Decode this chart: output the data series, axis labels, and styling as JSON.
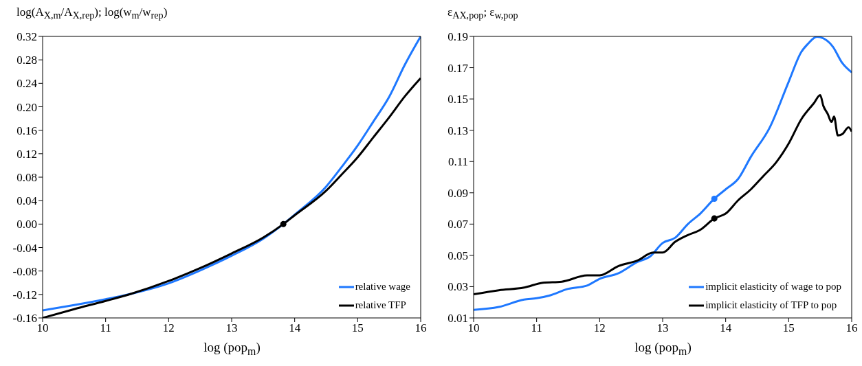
{
  "chart_data": [
    {
      "type": "line",
      "ylabel": "log(A$_{X,m}$/A$_{X,rep}$);  log(w$_{m}$/w$_{rep}$)",
      "xlabel": "log (pop$_{m}$)",
      "xlim": [
        10,
        16
      ],
      "xticks": [
        10,
        11,
        12,
        13,
        14,
        15,
        16
      ],
      "ylim": [
        -0.16,
        0.32
      ],
      "yticks": [
        -0.16,
        -0.12,
        -0.08,
        -0.04,
        {
          "value": 0,
          "label": "0.00"
        },
        0.04,
        0.08,
        0.12,
        0.16,
        {
          "value": 0.2,
          "label": "0.20"
        },
        0.24,
        0.28,
        0.32
      ],
      "grid": false,
      "legend": "bottom right",
      "marker": "none",
      "line_style": "solid",
      "series": [
        {
          "name": "relative wage",
          "color": "#1e78ff",
          "x": [
            10,
            10.5,
            11,
            11.4,
            12,
            12.5,
            13,
            13.5,
            13.82,
            14,
            14.5,
            14.75,
            15,
            15.25,
            15.5,
            15.75,
            16
          ],
          "values": [
            -0.147,
            -0.138,
            -0.128,
            -0.119,
            -0.101,
            -0.079,
            -0.054,
            -0.025,
            0,
            0.016,
            0.064,
            0.098,
            0.134,
            0.175,
            0.217,
            0.272,
            0.32
          ]
        },
        {
          "name": "relative TFP",
          "color": "#000000",
          "x": [
            10,
            10.5,
            11,
            11.4,
            12,
            12.5,
            13,
            13.5,
            13.82,
            14,
            14.5,
            14.75,
            15,
            15.25,
            15.5,
            15.75,
            16
          ],
          "values": [
            -0.16,
            -0.145,
            -0.131,
            -0.119,
            -0.097,
            -0.075,
            -0.05,
            -0.023,
            0,
            0.015,
            0.057,
            0.085,
            0.114,
            0.148,
            0.182,
            0.218,
            0.249
          ]
        },
        {
          "type": "scatter",
          "marker": "circle",
          "color": "#000000",
          "x": [
            13.82
          ],
          "values": [
            0
          ]
        }
      ]
    },
    {
      "type": "line",
      "ylabel": "ε$_{A}$$_{X,pop}$; ε$_{w,pop}$",
      "xlabel": "log (pop$_{m}$)",
      "xlim": [
        10,
        16
      ],
      "xticks": [
        10,
        11,
        12,
        13,
        14,
        15,
        16
      ],
      "ylim": [
        0.01,
        0.19
      ],
      "yticks": [
        0.01,
        0.03,
        0.05,
        0.07,
        0.09,
        0.11,
        0.13,
        0.15,
        0.17,
        0.19
      ],
      "grid": false,
      "legend": "bottom right",
      "marker": "none",
      "line_style": "solid",
      "series": [
        {
          "name": "implicit elasticity of wage to pop",
          "color": "#1e78ff",
          "x": [
            10,
            10.4,
            10.8,
            11,
            11.2,
            11.5,
            11.8,
            12,
            12.3,
            12.6,
            12.8,
            13,
            13.2,
            13.4,
            13.6,
            13.82,
            14,
            14.2,
            14.4,
            14.7,
            15,
            15.2,
            15.3,
            15.45,
            15.5,
            15.7,
            15.85,
            16
          ],
          "values": [
            0.0152,
            0.017,
            0.0217,
            0.0226,
            0.0243,
            0.0286,
            0.0307,
            0.035,
            0.0386,
            0.0458,
            0.0493,
            0.0579,
            0.0613,
            0.07,
            0.0768,
            0.0862,
            0.0922,
            0.099,
            0.113,
            0.1318,
            0.161,
            0.18,
            0.185,
            0.1898,
            0.1895,
            0.1835,
            0.173,
            0.167
          ]
        },
        {
          "name": "implicit elasticity of TFP to pop",
          "color": "#000000",
          "x": [
            10,
            10.4,
            10.8,
            11.1,
            11.4,
            11.8,
            12,
            12.3,
            12.6,
            12.85,
            13,
            13.2,
            13.4,
            13.6,
            13.82,
            14,
            14.2,
            14.4,
            14.6,
            14.8,
            15,
            15.2,
            15.4,
            15.5,
            15.55,
            15.62,
            15.68,
            15.72,
            15.78,
            15.85,
            15.95,
            16
          ],
          "values": [
            0.0251,
            0.0277,
            0.0294,
            0.0325,
            0.0332,
            0.0372,
            0.0372,
            0.0432,
            0.0467,
            0.0518,
            0.0518,
            0.0587,
            0.063,
            0.0664,
            0.0736,
            0.0767,
            0.0853,
            0.0922,
            0.1008,
            0.1094,
            0.1215,
            0.137,
            0.1473,
            0.1525,
            0.1456,
            0.1404,
            0.1353,
            0.1387,
            0.1267,
            0.1275,
            0.1318,
            0.1292
          ]
        },
        {
          "type": "scatter",
          "marker": "circle",
          "color": "#1e78ff",
          "x": [
            13.82
          ],
          "values": [
            0.0862
          ]
        },
        {
          "type": "scatter",
          "marker": "circle",
          "color": "#000000",
          "x": [
            13.82
          ],
          "values": [
            0.0736
          ]
        }
      ]
    }
  ]
}
